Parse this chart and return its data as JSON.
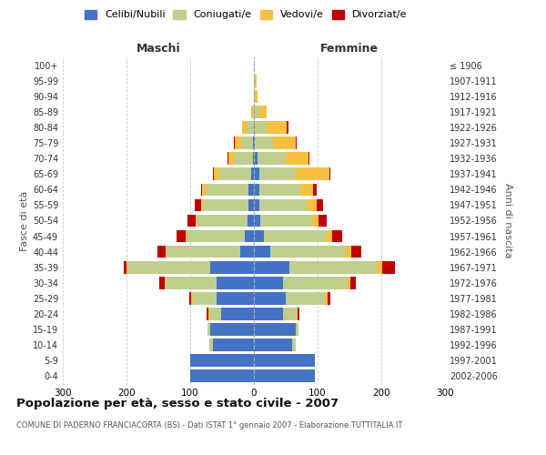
{
  "age_groups": [
    "0-4",
    "5-9",
    "10-14",
    "15-19",
    "20-24",
    "25-29",
    "30-34",
    "35-39",
    "40-44",
    "45-49",
    "50-54",
    "55-59",
    "60-64",
    "65-69",
    "70-74",
    "75-79",
    "80-84",
    "85-89",
    "90-94",
    "95-99",
    "100+"
  ],
  "birth_years": [
    "2002-2006",
    "1997-2001",
    "1992-1996",
    "1987-1991",
    "1982-1986",
    "1977-1981",
    "1972-1976",
    "1967-1971",
    "1962-1966",
    "1957-1961",
    "1952-1956",
    "1947-1951",
    "1942-1946",
    "1937-1941",
    "1932-1936",
    "1927-1931",
    "1922-1926",
    "1917-1921",
    "1912-1916",
    "1907-1911",
    "≤ 1906"
  ],
  "male_celibe": [
    100,
    100,
    65,
    68,
    52,
    58,
    58,
    68,
    22,
    15,
    10,
    8,
    8,
    5,
    2,
    2,
    0,
    0,
    0,
    0,
    0
  ],
  "male_coniugato": [
    0,
    0,
    5,
    5,
    18,
    38,
    80,
    130,
    115,
    90,
    80,
    72,
    68,
    50,
    30,
    18,
    10,
    2,
    0,
    0,
    0
  ],
  "male_vedovo": [
    0,
    0,
    0,
    0,
    2,
    2,
    2,
    2,
    2,
    2,
    2,
    3,
    5,
    8,
    8,
    10,
    8,
    2,
    0,
    0,
    0
  ],
  "male_divorziato": [
    0,
    0,
    0,
    0,
    2,
    3,
    8,
    5,
    12,
    15,
    12,
    10,
    2,
    2,
    2,
    2,
    0,
    0,
    0,
    0,
    0
  ],
  "fem_nubile": [
    95,
    95,
    60,
    65,
    45,
    50,
    45,
    55,
    25,
    15,
    10,
    8,
    8,
    8,
    5,
    2,
    2,
    0,
    0,
    0,
    0
  ],
  "fem_coniugata": [
    0,
    0,
    5,
    5,
    22,
    62,
    102,
    138,
    118,
    98,
    82,
    75,
    65,
    58,
    45,
    28,
    20,
    8,
    2,
    2,
    0
  ],
  "fem_vedova": [
    0,
    0,
    0,
    0,
    2,
    3,
    5,
    8,
    10,
    10,
    10,
    15,
    20,
    52,
    35,
    35,
    30,
    12,
    3,
    2,
    0
  ],
  "fem_divorziata": [
    0,
    0,
    0,
    0,
    2,
    5,
    8,
    20,
    15,
    15,
    12,
    10,
    5,
    2,
    2,
    2,
    2,
    0,
    0,
    0,
    0
  ],
  "colors": {
    "celibe": "#4472C4",
    "coniugato": "#BFCE8E",
    "vedovo": "#F5C040",
    "divorziato": "#C00000"
  },
  "xlim": 300,
  "title": "Popolazione per età, sesso e stato civile - 2007",
  "subtitle": "COMUNE DI PADERNO FRANCIACORTA (BS) - Dati ISTAT 1° gennaio 2007 - Elaborazione TUTTITALIA.IT",
  "ylabel_left": "Fasce di età",
  "ylabel_right": "Anni di nascita",
  "label_maschi": "Maschi",
  "label_femmine": "Femmine",
  "legend_labels": [
    "Celibi/Nubili",
    "Coniugati/e",
    "Vedovi/e",
    "Divorziat/e"
  ],
  "bg_color": "#ffffff",
  "grid_color": "#cccccc"
}
